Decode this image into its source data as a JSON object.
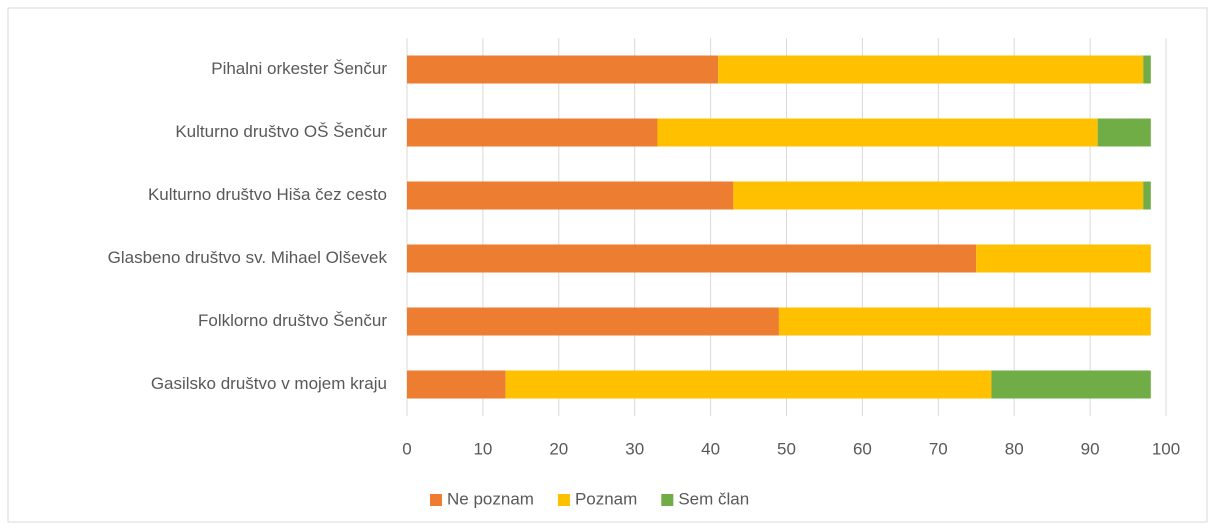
{
  "chart_data": {
    "type": "stacked_barh",
    "categories": [
      "Pihalni orkester Šenčur",
      "Kulturno društvo OŠ Šenčur",
      "Kulturno društvo Hiša čez cesto",
      "Glasbeno društvo sv. Mihael Olševek",
      "Folklorno društvo Šenčur",
      "Gasilsko društvo v mojem kraju"
    ],
    "series": [
      {
        "name": "Ne poznam",
        "color": "#ed7d31",
        "values": [
          41,
          33,
          43,
          75,
          49,
          13
        ]
      },
      {
        "name": "Poznam",
        "color": "#ffc000",
        "values": [
          56,
          58,
          54,
          23,
          49,
          64
        ]
      },
      {
        "name": "Sem član",
        "color": "#70ad47",
        "values": [
          1,
          7,
          1,
          0,
          0,
          21
        ]
      }
    ],
    "xlim": [
      0,
      100
    ],
    "xticks": [
      0,
      10,
      20,
      30,
      40,
      50,
      60,
      70,
      80,
      90,
      100
    ],
    "grid": true,
    "legend": "bottom"
  }
}
